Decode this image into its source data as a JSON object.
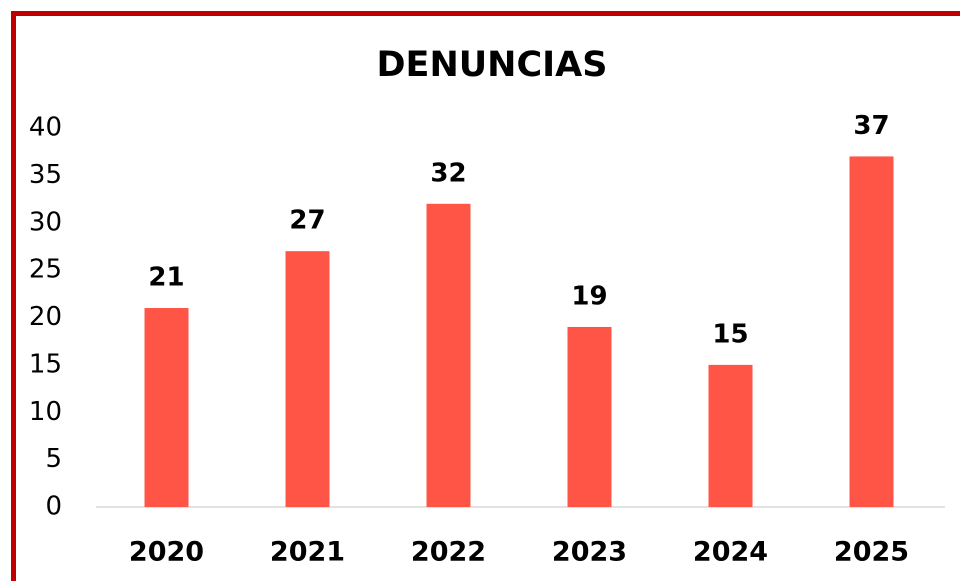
{
  "chart_data": {
    "type": "bar",
    "title": "DENUNCIAS",
    "categories": [
      "2020",
      "2021",
      "2022",
      "2023",
      "2024",
      "2025"
    ],
    "values": [
      21,
      27,
      32,
      19,
      15,
      37
    ],
    "color": "#ff5546",
    "ylim": [
      0,
      40
    ],
    "yticks": [
      0,
      5,
      10,
      15,
      20,
      25,
      30,
      35,
      40
    ],
    "grid": false,
    "data_labels": true
  }
}
